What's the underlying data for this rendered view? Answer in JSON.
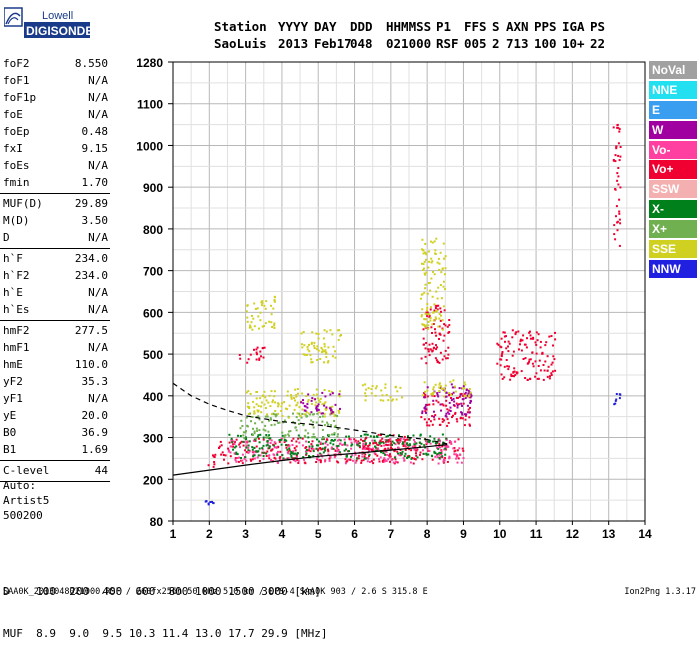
{
  "logo": {
    "line1": "Lowell",
    "line2": "DIGISONDE"
  },
  "header": {
    "labels": [
      "Station",
      "YYYY",
      "DAY",
      "DDD",
      "HHMMSS",
      "P1",
      "FFS",
      "S",
      "AXN",
      "PPS",
      "IGA",
      "PS"
    ],
    "values": [
      "SaoLuis",
      "2013",
      "Feb17",
      "048",
      "021000",
      "RSF",
      "005",
      "2",
      "713",
      "100",
      "10+",
      "22"
    ]
  },
  "params": [
    [
      {
        "name": "foF2",
        "value": "8.550"
      },
      {
        "name": "foF1",
        "value": "N/A"
      },
      {
        "name": "foF1p",
        "value": "N/A"
      },
      {
        "name": "foE",
        "value": "N/A"
      },
      {
        "name": "foEp",
        "value": "0.48"
      },
      {
        "name": "fxI",
        "value": "9.15"
      },
      {
        "name": "foEs",
        "value": "N/A"
      },
      {
        "name": "fmin",
        "value": "1.70"
      }
    ],
    [
      {
        "name": "MUF(D)",
        "value": "29.89"
      },
      {
        "name": "M(D)",
        "value": "3.50"
      },
      {
        "name": "D",
        "value": "N/A"
      }
    ],
    [
      {
        "name": "h`F",
        "value": "234.0"
      },
      {
        "name": "h`F2",
        "value": "234.0"
      },
      {
        "name": "h`E",
        "value": "N/A"
      },
      {
        "name": "h`Es",
        "value": "N/A"
      }
    ],
    [
      {
        "name": "hmF2",
        "value": "277.5"
      },
      {
        "name": "hmF1",
        "value": "N/A"
      },
      {
        "name": "hmE",
        "value": "110.0"
      },
      {
        "name": "yF2",
        "value": "35.3"
      },
      {
        "name": "yF1",
        "value": "N/A"
      },
      {
        "name": "yE",
        "value": "20.0"
      },
      {
        "name": "B0",
        "value": "36.9"
      },
      {
        "name": "B1",
        "value": "1.69"
      }
    ],
    [
      {
        "name": "C-level",
        "value": "44"
      }
    ]
  ],
  "auto": {
    "line1": "Auto:",
    "line2": "Artist5",
    "line3": "500200"
  },
  "legend": [
    {
      "label": "NoVal",
      "color": "#a0a0a0"
    },
    {
      "label": "NNE",
      "color": "#22e0f0"
    },
    {
      "label": "E",
      "color": "#3a9ef0"
    },
    {
      "label": "W",
      "color": "#a000a0"
    },
    {
      "label": "Vo-",
      "color": "#ff40a0"
    },
    {
      "label": "Vo+",
      "color": "#f00030"
    },
    {
      "label": "SSW",
      "color": "#f4b0b0"
    },
    {
      "label": "X-",
      "color": "#00801a"
    },
    {
      "label": "X+",
      "color": "#70b050"
    },
    {
      "label": "SSE",
      "color": "#d0d020"
    },
    {
      "label": "NNW",
      "color": "#2020e0"
    }
  ],
  "footer": {
    "d_row": "D    100  200  400  600  800 1000 1500 3000 [km]",
    "muf_row": "MUF  8.9  9.0  9.5 10.3 11.4 13.0 17.7 29.9 [MHz]",
    "file_line": "SAA0K_2013048021000.RSF / 260fx256h 50 kHz 5.0 km / DPS-4 SAA0K 903 / 2.6 S 315.8 E",
    "version": "Ion2Png 1.3.17"
  },
  "chart_data": {
    "type": "scatter",
    "x_ticks": [
      1,
      2,
      3,
      4,
      5,
      6,
      7,
      8,
      9,
      10,
      11,
      12,
      13,
      14
    ],
    "y_ticks": [
      80,
      200,
      300,
      400,
      500,
      600,
      700,
      800,
      900,
      1000,
      1100,
      1280
    ],
    "xlim": [
      1,
      14
    ],
    "ylim": [
      80,
      1280
    ],
    "grid": true,
    "legend_position": "right",
    "traces": [
      {
        "name": "ordinary_profile_dashed",
        "x": [
          1.0,
          1.5,
          2.0,
          2.5,
          3.0,
          4.0,
          5.0,
          6.0,
          7.0,
          8.0,
          8.55
        ],
        "y": [
          430,
          400,
          380,
          365,
          352,
          338,
          330,
          318,
          305,
          295,
          285
        ]
      },
      {
        "name": "ordinary_trace_solid",
        "x": [
          1.0,
          2.0,
          3.0,
          4.0,
          5.0,
          6.0,
          7.0,
          8.0,
          8.55
        ],
        "y": [
          210,
          222,
          234,
          245,
          255,
          262,
          270,
          278,
          283
        ]
      }
    ],
    "echo_clusters": [
      {
        "x": [
          1.9,
          2.2
        ],
        "y": [
          232,
          268
        ],
        "color": "#f00030"
      },
      {
        "x": [
          2.2,
          9.0
        ],
        "y": [
          240,
          300
        ],
        "color": "#f00030"
      },
      {
        "x": [
          2.5,
          9.0
        ],
        "y": [
          240,
          300
        ],
        "color": "#ff40a0"
      },
      {
        "x": [
          2.5,
          8.5
        ],
        "y": [
          250,
          310
        ],
        "color": "#00801a"
      },
      {
        "x": [
          2.8,
          5.6
        ],
        "y": [
          300,
          360
        ],
        "color": "#70b050"
      },
      {
        "x": [
          3.0,
          5.6
        ],
        "y": [
          350,
          420
        ],
        "color": "#d0d020"
      },
      {
        "x": [
          4.5,
          5.6
        ],
        "y": [
          360,
          410
        ],
        "color": "#a000a0"
      },
      {
        "x": [
          6.2,
          7.3
        ],
        "y": [
          390,
          430
        ],
        "color": "#d0d020"
      },
      {
        "x": [
          6.2,
          7.5
        ],
        "y": [
          270,
          310
        ],
        "color": "#f00030"
      },
      {
        "x": [
          7.8,
          9.2
        ],
        "y": [
          330,
          410
        ],
        "color": "#f00030"
      },
      {
        "x": [
          7.8,
          9.2
        ],
        "y": [
          350,
          430
        ],
        "color": "#a000a0"
      },
      {
        "x": [
          7.8,
          9.2
        ],
        "y": [
          400,
          440
        ],
        "color": "#d0d020"
      },
      {
        "x": [
          2.8,
          3.5
        ],
        "y": [
          480,
          520
        ],
        "color": "#f00030"
      },
      {
        "x": [
          3.0,
          3.8
        ],
        "y": [
          560,
          640
        ],
        "color": "#d0d020"
      },
      {
        "x": [
          4.5,
          5.6
        ],
        "y": [
          480,
          560
        ],
        "color": "#d0d020"
      },
      {
        "x": [
          7.8,
          8.6
        ],
        "y": [
          480,
          620
        ],
        "color": "#f00030"
      },
      {
        "x": [
          7.8,
          8.5
        ],
        "y": [
          560,
          780
        ],
        "color": "#d0d020"
      },
      {
        "x": [
          9.9,
          11.5
        ],
        "y": [
          440,
          560
        ],
        "color": "#f00030"
      },
      {
        "x": [
          1.8,
          2.1
        ],
        "y": [
          130,
          142
        ],
        "color": "#2020e0"
      },
      {
        "x": [
          13.1,
          13.3
        ],
        "y": [
          380,
          410
        ],
        "color": "#2020e0"
      },
      {
        "x": [
          13.1,
          13.3
        ],
        "y": [
          760,
          1060
        ],
        "color": "#f00030"
      }
    ]
  }
}
